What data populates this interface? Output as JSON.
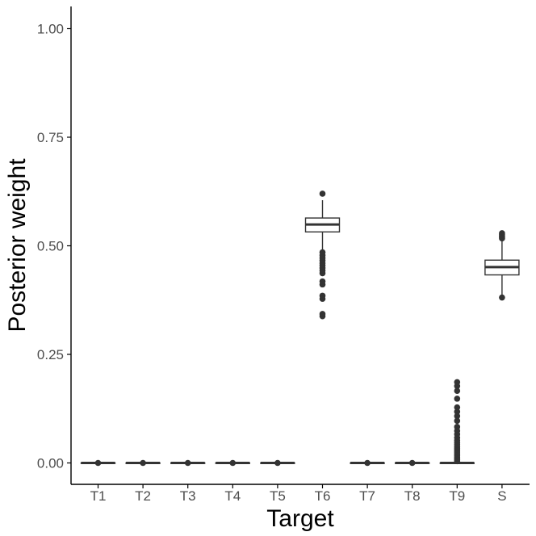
{
  "chart_data": {
    "type": "box",
    "xlabel": "Target",
    "ylabel": "Posterior weight",
    "ylim": [
      -0.05,
      1.05
    ],
    "y_ticks": [
      "0.00",
      "0.25",
      "0.50",
      "0.75",
      "1.00"
    ],
    "y_tick_values": [
      0,
      0.25,
      0.5,
      0.75,
      1.0
    ],
    "grid": false,
    "categories": [
      "T1",
      "T2",
      "T3",
      "T4",
      "T5",
      "T6",
      "T7",
      "T8",
      "T9",
      "S"
    ],
    "boxes": [
      {
        "category": "T1",
        "min": 0,
        "q1": 0,
        "median": 0,
        "q3": 0,
        "max": 0,
        "outliers": [
          0
        ]
      },
      {
        "category": "T2",
        "min": 0,
        "q1": 0,
        "median": 0,
        "q3": 0,
        "max": 0,
        "outliers": [
          0
        ]
      },
      {
        "category": "T3",
        "min": 0,
        "q1": 0,
        "median": 0,
        "q3": 0,
        "max": 0,
        "outliers": [
          0
        ]
      },
      {
        "category": "T4",
        "min": 0,
        "q1": 0,
        "median": 0,
        "q3": 0,
        "max": 0,
        "outliers": [
          0
        ]
      },
      {
        "category": "T5",
        "min": 0,
        "q1": 0,
        "median": 0,
        "q3": 0,
        "max": 0,
        "outliers": [
          0
        ]
      },
      {
        "category": "T6",
        "min": 0.49,
        "q1": 0.532,
        "median": 0.549,
        "q3": 0.564,
        "max": 0.605,
        "outliers": [
          0.62,
          0.485,
          0.478,
          0.472,
          0.466,
          0.46,
          0.455,
          0.449,
          0.443,
          0.437,
          0.418,
          0.411,
          0.385,
          0.378,
          0.343,
          0.338
        ]
      },
      {
        "category": "T7",
        "min": 0,
        "q1": 0,
        "median": 0,
        "q3": 0,
        "max": 0,
        "outliers": [
          0
        ]
      },
      {
        "category": "T8",
        "min": 0,
        "q1": 0,
        "median": 0,
        "q3": 0,
        "max": 0,
        "outliers": [
          0
        ]
      },
      {
        "category": "T9",
        "min": 0,
        "q1": 0,
        "median": 0,
        "q3": 0,
        "max": 0,
        "outliers": [
          0.186,
          0.177,
          0.166,
          0.148,
          0.128,
          0.118,
          0.108,
          0.097,
          0.083,
          0.074,
          0.066,
          0.058,
          0.052,
          0.047,
          0.042,
          0.037,
          0.033,
          0.029,
          0.025,
          0.021,
          0.017,
          0.013,
          0.01,
          0.007,
          0.004
        ]
      },
      {
        "category": "S",
        "min": 0.38,
        "q1": 0.433,
        "median": 0.451,
        "q3": 0.467,
        "max": 0.512,
        "outliers": [
          0.529,
          0.526,
          0.523,
          0.52,
          0.517,
          0.381
        ]
      }
    ]
  }
}
